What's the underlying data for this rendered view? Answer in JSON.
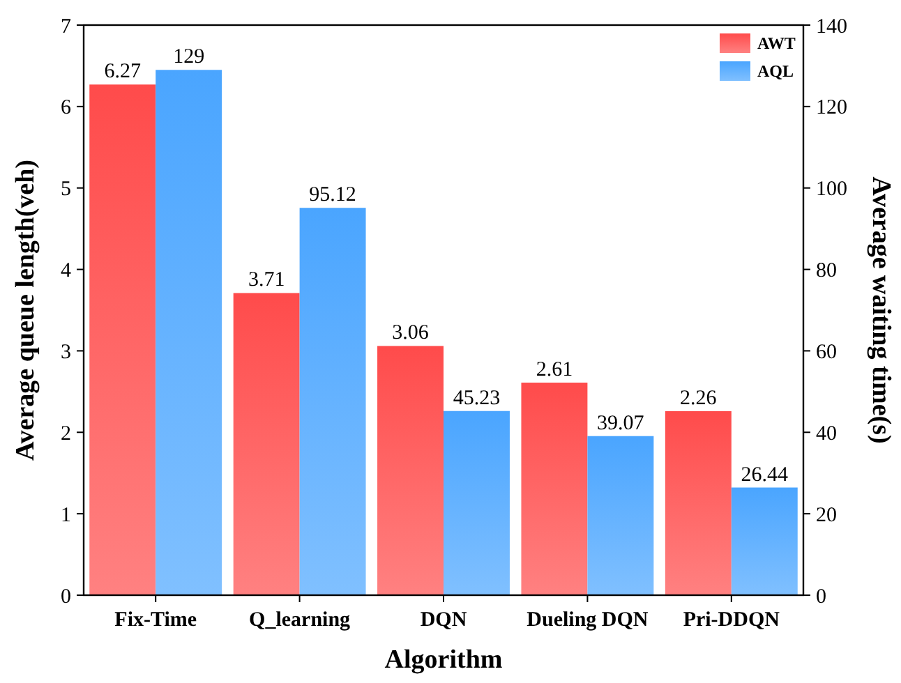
{
  "chart_data": {
    "type": "bar",
    "xlabel": "Algorithm",
    "ylabel": "Average queue length(veh)",
    "y2label": "Average waiting time(s)",
    "categories": [
      "Fix-Time",
      "Q_learning",
      "DQN",
      "Dueling DQN",
      "Pri-DDQN"
    ],
    "series": [
      {
        "name": "AWT",
        "color": "#ff4b4b",
        "values": [
          6.27,
          3.71,
          3.06,
          2.61,
          2.26
        ]
      },
      {
        "name": "AQL",
        "color": "#4aa5ff",
        "axis": "y2",
        "values": [
          129,
          95.12,
          45.23,
          39.07,
          26.44
        ]
      }
    ],
    "ylim": [
      0,
      7
    ],
    "yticks": [
      0,
      1,
      2,
      3,
      4,
      5,
      6,
      7
    ],
    "y2lim": [
      0,
      140
    ],
    "y2ticks": [
      0,
      20,
      40,
      60,
      80,
      100,
      120,
      140
    ],
    "data_labels": true,
    "legend": "top right"
  }
}
